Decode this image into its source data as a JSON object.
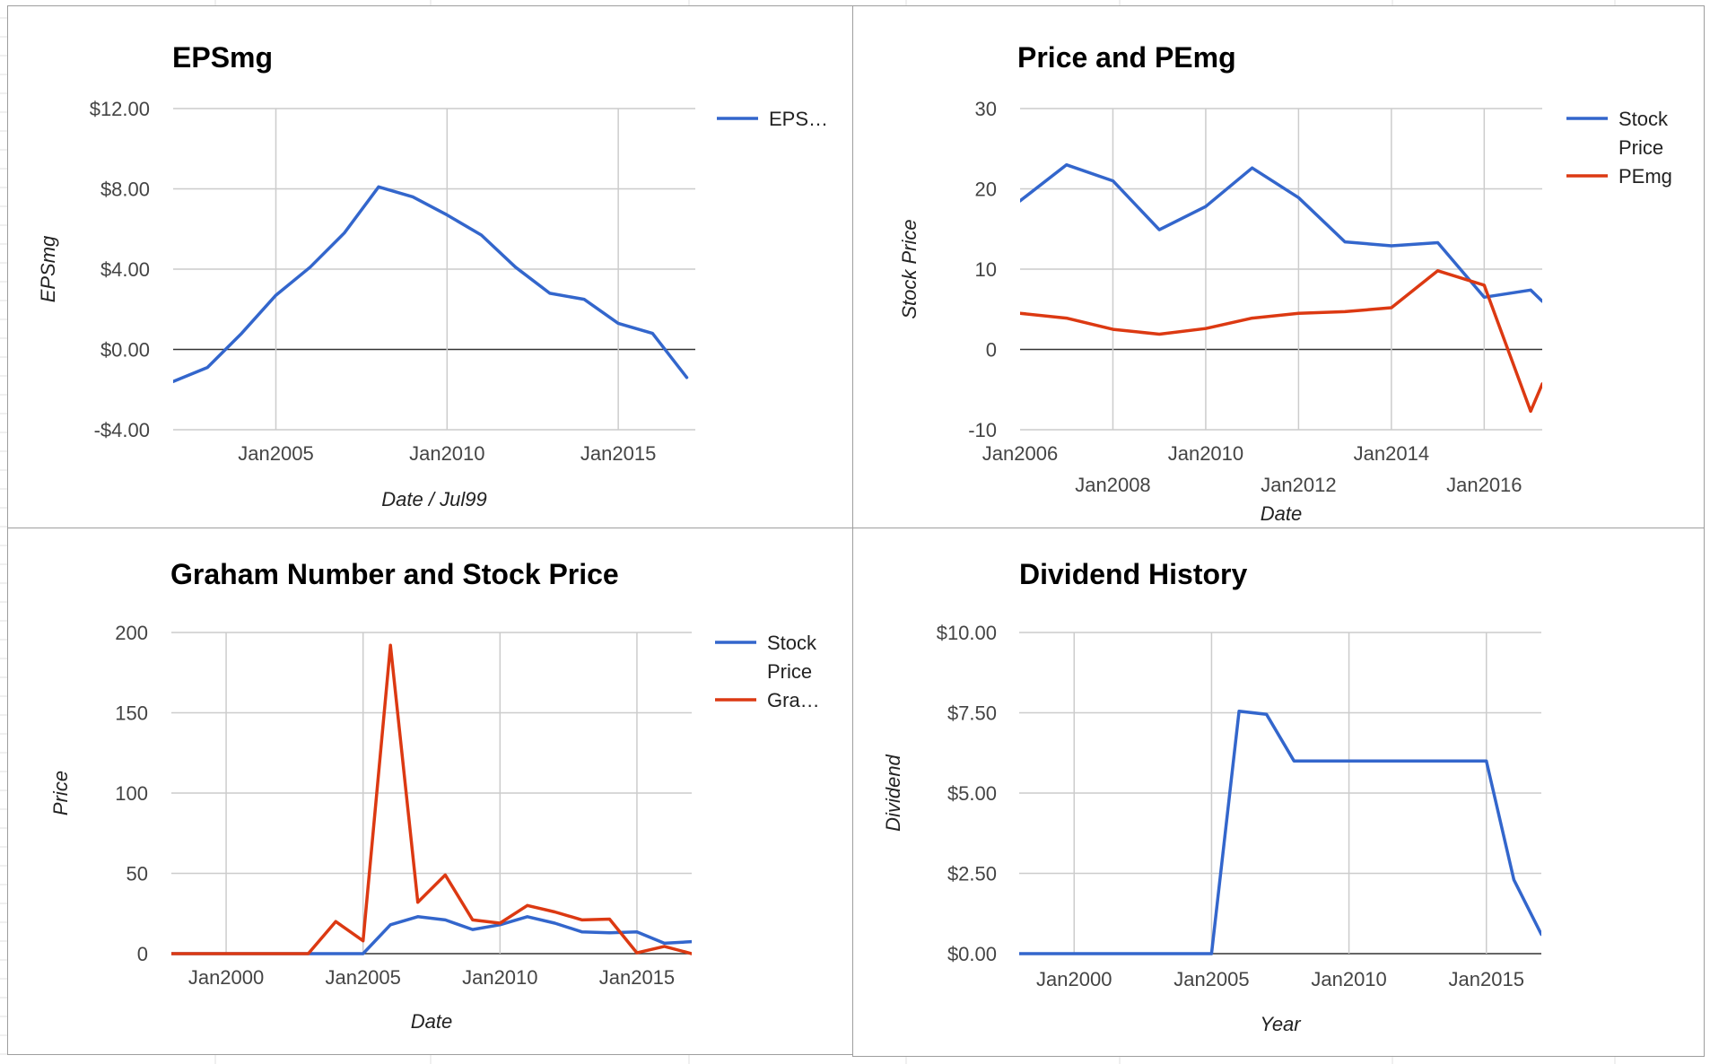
{
  "colors": {
    "blue": "#3366cc",
    "red": "#dc3912",
    "grid": "#cccccc",
    "frame": "#9e9e9e"
  },
  "chart_data": [
    {
      "type": "line",
      "title": "EPSmg",
      "xlabel": "Date / Jul99",
      "ylabel": "EPSmg",
      "x_type": "date",
      "xlim": [
        "2002-01",
        "2017-04"
      ],
      "ylim": [
        -4,
        12
      ],
      "yticks": [
        -4,
        0,
        4,
        8,
        12
      ],
      "ytick_labels": [
        "-$4.00",
        "$0.00",
        "$4.00",
        "$8.00",
        "$12.00"
      ],
      "xticks": [
        "2005-01",
        "2010-01",
        "2015-01"
      ],
      "xtick_labels": [
        "Jan2005",
        "Jan2010",
        "Jan2015"
      ],
      "legend": "right",
      "series": [
        {
          "name": "EPS…",
          "color": "#3366cc",
          "x": [
            "2002-01",
            "2003-01",
            "2004-01",
            "2005-01",
            "2006-01",
            "2007-01",
            "2008-01",
            "2009-01",
            "2010-01",
            "2011-01",
            "2012-01",
            "2013-01",
            "2014-01",
            "2015-01",
            "2016-01",
            "2017-01"
          ],
          "values": [
            -1.6,
            -0.9,
            0.8,
            2.7,
            4.1,
            5.8,
            8.1,
            7.6,
            6.7,
            5.7,
            4.1,
            2.8,
            2.5,
            1.3,
            0.8,
            -1.4
          ]
        }
      ]
    },
    {
      "type": "line",
      "title": "Price and PEmg",
      "xlabel": "Date",
      "ylabel": "Stock Price",
      "x_type": "date",
      "xlim": [
        "2006-01",
        "2017-04"
      ],
      "ylim": [
        -10,
        30
      ],
      "yticks": [
        -10,
        0,
        10,
        20,
        30
      ],
      "ytick_labels": [
        "-10",
        "0",
        "10",
        "20",
        "30"
      ],
      "xticks": [
        "2006-01",
        "2008-01",
        "2010-01",
        "2012-01",
        "2014-01",
        "2016-01"
      ],
      "xtick_labels": [
        "Jan2006",
        "Jan2008",
        "Jan2010",
        "Jan2012",
        "Jan2014",
        "Jan2016"
      ],
      "legend": "right",
      "series": [
        {
          "name": "Stock Price",
          "color": "#3366cc",
          "x": [
            "2006-01",
            "2007-01",
            "2008-01",
            "2009-01",
            "2010-01",
            "2011-01",
            "2012-01",
            "2013-01",
            "2014-01",
            "2015-01",
            "2016-01",
            "2017-01",
            "2017-04"
          ],
          "values": [
            18.5,
            23.0,
            21.0,
            14.9,
            17.8,
            22.6,
            18.9,
            13.4,
            12.9,
            13.3,
            6.5,
            7.4,
            6.0
          ]
        },
        {
          "name": "PEmg",
          "color": "#dc3912",
          "x": [
            "2006-01",
            "2007-01",
            "2008-01",
            "2009-01",
            "2010-01",
            "2011-01",
            "2012-01",
            "2013-01",
            "2014-01",
            "2015-01",
            "2016-01",
            "2017-01",
            "2017-04"
          ],
          "values": [
            4.5,
            3.9,
            2.5,
            1.9,
            2.6,
            3.9,
            4.5,
            4.7,
            5.2,
            9.8,
            8.0,
            -7.7,
            -4.3
          ]
        }
      ]
    },
    {
      "type": "line",
      "title": "Graham Number and Stock Price",
      "xlabel": "Date",
      "ylabel": "Price",
      "x_type": "date",
      "xlim": [
        "1998-01",
        "2017-01"
      ],
      "ylim": [
        0,
        200
      ],
      "yticks": [
        0,
        50,
        100,
        150,
        200
      ],
      "ytick_labels": [
        "0",
        "50",
        "100",
        "150",
        "200"
      ],
      "xticks": [
        "2000-01",
        "2005-01",
        "2010-01",
        "2015-01"
      ],
      "xtick_labels": [
        "Jan2000",
        "Jan2005",
        "Jan2010",
        "Jan2015"
      ],
      "legend": "right",
      "series": [
        {
          "name": "Stock Price",
          "color": "#3366cc",
          "x": [
            "1998-01",
            "1999-01",
            "2000-01",
            "2001-01",
            "2002-01",
            "2003-01",
            "2004-01",
            "2005-01",
            "2006-01",
            "2007-01",
            "2008-01",
            "2009-01",
            "2010-01",
            "2011-01",
            "2012-01",
            "2013-01",
            "2014-01",
            "2015-01",
            "2016-01",
            "2017-01"
          ],
          "values": [
            0,
            0,
            0,
            0,
            0,
            0,
            0,
            0,
            18,
            23,
            21,
            15,
            18,
            23,
            19,
            13.5,
            13,
            13.5,
            6.5,
            7.5
          ]
        },
        {
          "name": "Gra…",
          "color": "#dc3912",
          "x": [
            "1998-01",
            "1999-01",
            "2000-01",
            "2001-01",
            "2002-01",
            "2003-01",
            "2004-01",
            "2005-01",
            "2006-01",
            "2007-01",
            "2008-01",
            "2009-01",
            "2010-01",
            "2011-01",
            "2012-01",
            "2013-01",
            "2014-01",
            "2015-01",
            "2016-01",
            "2017-01"
          ],
          "values": [
            0,
            0,
            0,
            0,
            0,
            0,
            20,
            8,
            192,
            32,
            49,
            21,
            19,
            30,
            26,
            21,
            21.5,
            0.5,
            4.5,
            0
          ]
        }
      ]
    },
    {
      "type": "line",
      "title": "Dividend History",
      "xlabel": "Year",
      "ylabel": "Dividend",
      "x_type": "date",
      "xlim": [
        "1998-01",
        "2017-01"
      ],
      "ylim": [
        0,
        10
      ],
      "yticks": [
        0,
        2.5,
        5,
        7.5,
        10
      ],
      "ytick_labels": [
        "$0.00",
        "$2.50",
        "$5.00",
        "$7.50",
        "$10.00"
      ],
      "xticks": [
        "2000-01",
        "2005-01",
        "2010-01",
        "2015-01"
      ],
      "xtick_labels": [
        "Jan2000",
        "Jan2005",
        "Jan2010",
        "Jan2015"
      ],
      "legend": "none",
      "series": [
        {
          "name": "",
          "color": "#3366cc",
          "x": [
            "1998-01",
            "1999-01",
            "2000-01",
            "2001-01",
            "2002-01",
            "2003-01",
            "2004-01",
            "2005-01",
            "2006-01",
            "2007-01",
            "2008-01",
            "2009-01",
            "2010-01",
            "2011-01",
            "2012-01",
            "2013-01",
            "2014-01",
            "2015-01",
            "2016-01",
            "2017-01"
          ],
          "values": [
            0,
            0,
            0,
            0,
            0,
            0,
            0,
            0,
            7.55,
            7.45,
            6.0,
            6.0,
            6.0,
            6.0,
            6.0,
            6.0,
            6.0,
            6.0,
            2.3,
            0.6
          ]
        }
      ]
    }
  ]
}
